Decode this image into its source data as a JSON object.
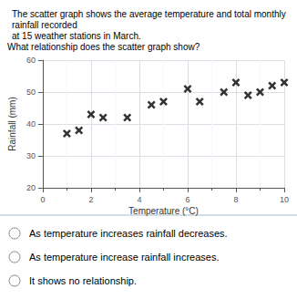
{
  "chart_data": {
    "type": "scatter",
    "title": "The scatter graph shows the average temperature and total monthly rainfall recorded\nat 15 weather stations in March.",
    "annotations": [
      "What relationship does the scatter graph show?",
      "As temperature increases rainfall decreases.",
      "As temperature increase rainfall increases.",
      "It shows no relationship."
    ],
    "xlabel": "Temperature (°C)",
    "ylabel": "Rainfall (mm)",
    "x": [
      1,
      1.5,
      2,
      2.5,
      3.5,
      4.5,
      5,
      6,
      6.5,
      7.5,
      8,
      8.5,
      9,
      9.5,
      10
    ],
    "values": [
      37,
      38,
      43,
      42,
      42,
      46,
      47,
      51,
      47,
      50,
      53,
      49,
      50,
      52,
      53
    ],
    "color": "black",
    "marker": "x",
    "xlim": [
      0,
      10
    ],
    "ylim": [
      20,
      60
    ],
    "xticks": [
      0,
      2,
      4,
      6,
      8,
      10
    ],
    "yticks": [
      20,
      30,
      40,
      50,
      60
    ],
    "grid": true
  }
}
